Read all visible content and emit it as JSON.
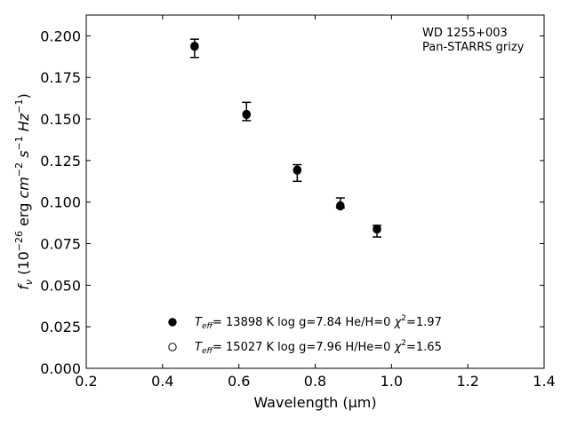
{
  "chart_data": {
    "type": "scatter",
    "xlabel": "Wavelength (μm)",
    "ylabel": {
      "prefix": "f",
      "sub": "ν",
      "units_open": " (10",
      "exp1": "−26",
      "erg": " erg ",
      "cm": "cm",
      "exp2": "−2",
      "s": "s",
      "exp3": "−1",
      "hz": "Hz",
      "exp4": "−1",
      "close": ")"
    },
    "xlim": [
      0.2,
      1.4
    ],
    "ylim": [
      0.0,
      0.2125
    ],
    "x_ticks": [
      0.2,
      0.4,
      0.6,
      0.8,
      1.0,
      1.2,
      1.4
    ],
    "x_tick_labels": [
      "0.2",
      "0.4",
      "0.6",
      "0.8",
      "1.0",
      "1.2",
      "1.4"
    ],
    "y_ticks": [
      0.0,
      0.025,
      0.05,
      0.075,
      0.1,
      0.125,
      0.15,
      0.175,
      0.2
    ],
    "y_tick_labels": [
      "0.000",
      "0.025",
      "0.050",
      "0.075",
      "0.100",
      "0.125",
      "0.150",
      "0.175",
      "0.200"
    ],
    "grid": false,
    "legend_position": "bottom-center",
    "annotation": {
      "line1": "WD 1255+003",
      "line2": "Pan-STARRS grizy"
    },
    "observed": {
      "x": [
        0.484,
        0.62,
        0.753,
        0.866,
        0.962
      ],
      "y": [
        0.1925,
        0.1545,
        0.1175,
        0.0995,
        0.0825
      ],
      "err": [
        0.0055,
        0.0055,
        0.005,
        0.003,
        0.0035
      ]
    },
    "series": [
      {
        "marker": "filled",
        "x": [
          0.484,
          0.62,
          0.753,
          0.866,
          0.962
        ],
        "y": [
          0.194,
          0.153,
          0.1195,
          0.098,
          0.084
        ],
        "legend": {
          "T": "T",
          "sub": "eff",
          "text1": "= 13898 K  log g=7.84  He/H=0  ",
          "chi": "χ",
          "sup": "2",
          "text2": "=1.97"
        }
      },
      {
        "marker": "open",
        "x": [
          0.484,
          0.62,
          0.753,
          0.866,
          0.962
        ],
        "y": [
          0.1935,
          0.1525,
          0.119,
          0.0975,
          0.0835
        ],
        "legend": {
          "T": "T",
          "sub": "eff",
          "text1": "= 15027 K  log g=7.96  H/He=0  ",
          "chi": "χ",
          "sup": "2",
          "text2": "=1.65"
        }
      }
    ]
  }
}
